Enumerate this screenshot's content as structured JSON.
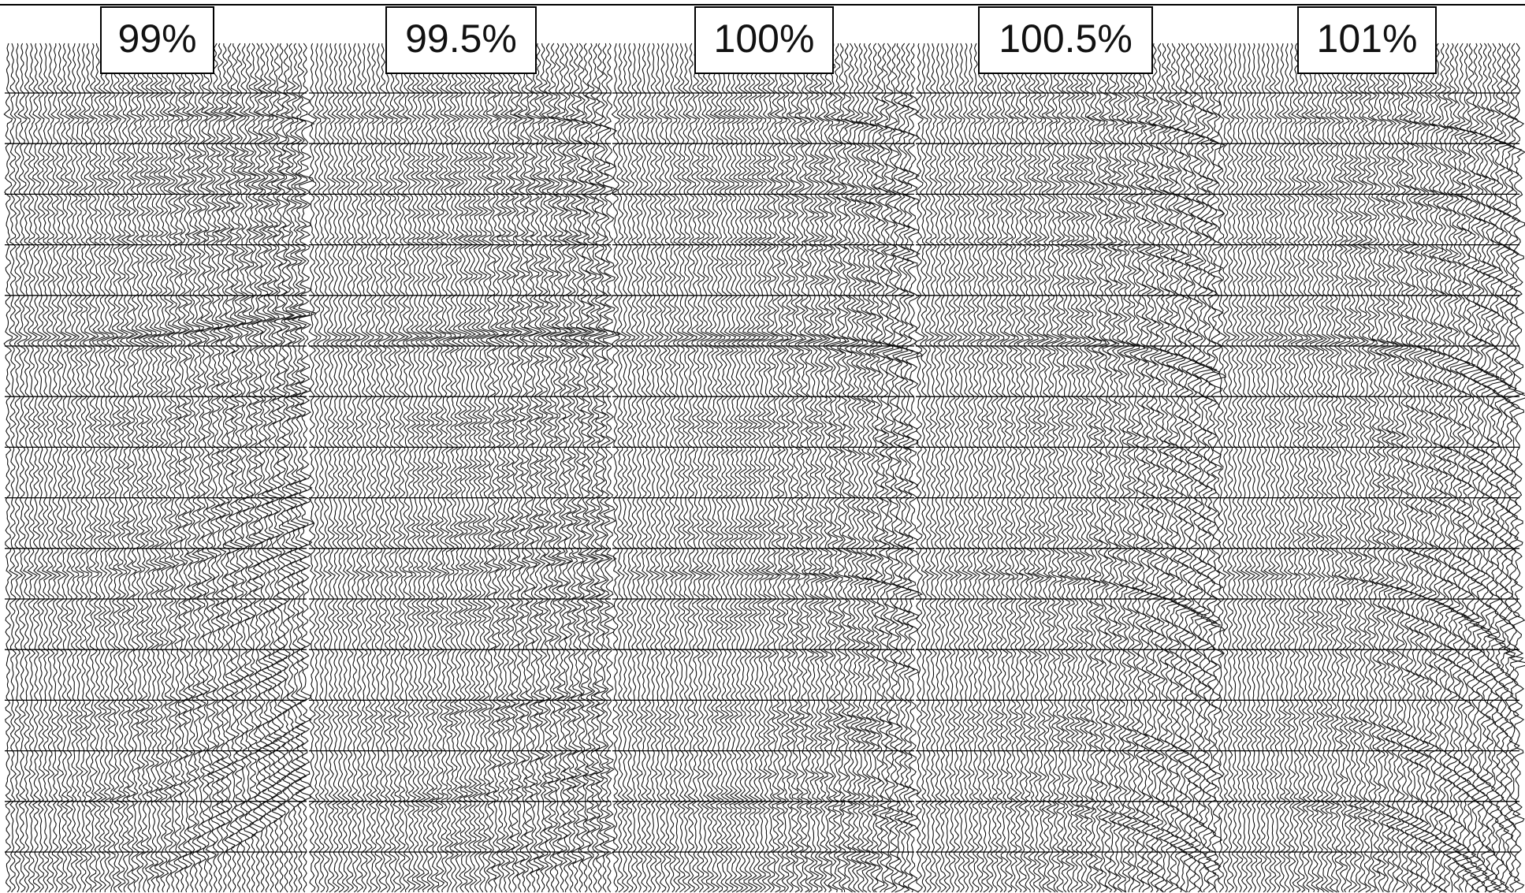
{
  "panels": [
    {
      "label": "99%"
    },
    {
      "label": "99.5%"
    },
    {
      "label": "100%"
    },
    {
      "label": "100.5%"
    },
    {
      "label": "101%"
    }
  ]
}
